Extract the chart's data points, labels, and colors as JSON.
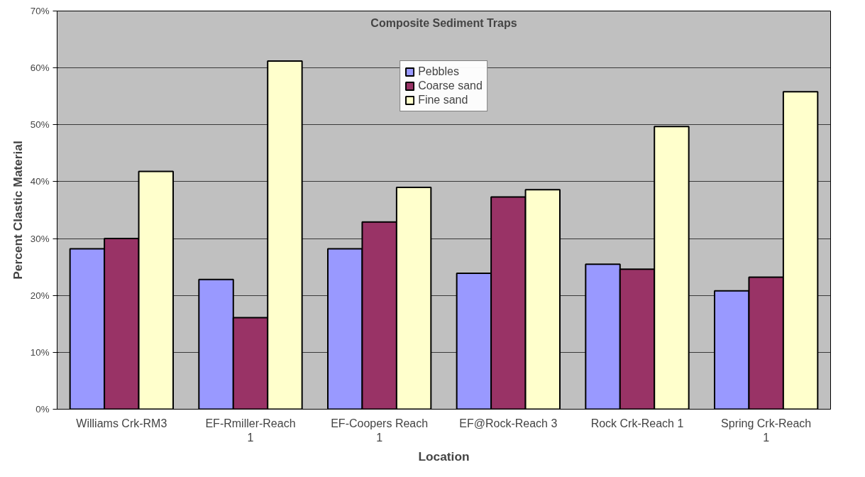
{
  "chart_data": {
    "type": "bar",
    "title": "Composite Sediment Traps",
    "xlabel": "Location",
    "ylabel": "Percent Clastic Material",
    "categories": [
      "Williams Crk-RM3",
      "EF-Rmiller-Reach 1",
      "EF-Coopers Reach 1",
      "EF@Rock-Reach 3",
      "Rock Crk-Reach 1",
      "Spring Crk-Reach 1"
    ],
    "series": [
      {
        "name": "Pebbles",
        "color": "#9999ff",
        "values": [
          28.2,
          22.8,
          28.2,
          23.9,
          25.5,
          20.8
        ]
      },
      {
        "name": "Coarse sand",
        "color": "#993366",
        "values": [
          30.0,
          16.1,
          32.9,
          37.3,
          24.6,
          23.2
        ]
      },
      {
        "name": "Fine sand",
        "color": "#ffffcc",
        "values": [
          41.8,
          61.2,
          39.0,
          38.6,
          49.7,
          55.8
        ]
      }
    ],
    "ylim": [
      0,
      70
    ],
    "yticks": [
      {
        "value": 0,
        "label": "0%"
      },
      {
        "value": 10,
        "label": "10%"
      },
      {
        "value": 20,
        "label": "20%"
      },
      {
        "value": 30,
        "label": "30%"
      },
      {
        "value": 40,
        "label": "40%"
      },
      {
        "value": 50,
        "label": "50%"
      },
      {
        "value": 60,
        "label": "60%"
      },
      {
        "value": 70,
        "label": "70%"
      }
    ],
    "grid": "y",
    "legend": "top"
  }
}
